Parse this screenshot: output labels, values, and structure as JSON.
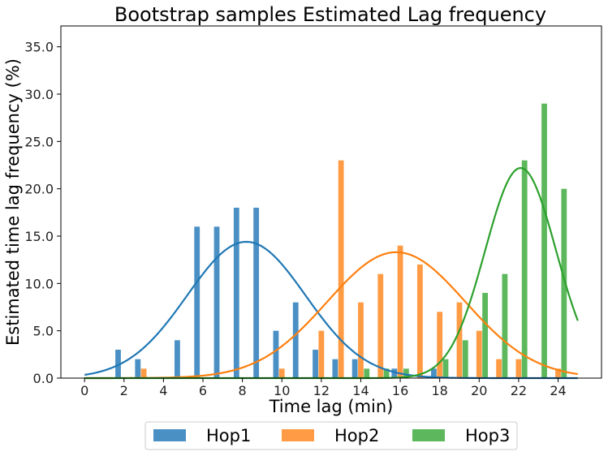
{
  "chart_data": {
    "type": "bar",
    "title": "Bootstrap samples Estimated Lag frequency",
    "xlabel": "Time lag (min)",
    "ylabel": "Estimated time lag frequency (%)",
    "xlim": [
      -1.2,
      26.2
    ],
    "ylim": [
      0,
      37.2
    ],
    "x_ticks": [
      0,
      2,
      4,
      6,
      8,
      10,
      12,
      14,
      16,
      18,
      20,
      22,
      24
    ],
    "y_ticks": [
      0.0,
      5.0,
      10.0,
      15.0,
      20.0,
      25.0,
      30.0,
      35.0
    ],
    "bar_offsets": [
      -0.3,
      0,
      0.3
    ],
    "bar_width": 0.28,
    "legend_position": "bottom-center",
    "grid": false,
    "series": [
      {
        "name": "Hop1",
        "color": "#4a90c4",
        "line_color": "#1f77b4",
        "bars": [
          {
            "x": 2,
            "y": 3
          },
          {
            "x": 3,
            "y": 2
          },
          {
            "x": 5,
            "y": 4
          },
          {
            "x": 6,
            "y": 16
          },
          {
            "x": 7,
            "y": 16
          },
          {
            "x": 8,
            "y": 18
          },
          {
            "x": 9,
            "y": 18
          },
          {
            "x": 10,
            "y": 5
          },
          {
            "x": 11,
            "y": 8
          },
          {
            "x": 12,
            "y": 3
          },
          {
            "x": 13,
            "y": 2
          },
          {
            "x": 14,
            "y": 2
          },
          {
            "x": 16,
            "y": 1
          },
          {
            "x": 18,
            "y": 1
          }
        ],
        "fit": {
          "mean": 8.2,
          "sd": 3.0,
          "peak": 14.4
        }
      },
      {
        "name": "Hop2",
        "color": "#ff9b44",
        "line_color": "#ff7f0e",
        "bars": [
          {
            "x": 3,
            "y": 1
          },
          {
            "x": 10,
            "y": 1
          },
          {
            "x": 12,
            "y": 5
          },
          {
            "x": 13,
            "y": 23
          },
          {
            "x": 14,
            "y": 8
          },
          {
            "x": 15,
            "y": 11
          },
          {
            "x": 16,
            "y": 14
          },
          {
            "x": 17,
            "y": 12
          },
          {
            "x": 18,
            "y": 7
          },
          {
            "x": 19,
            "y": 8
          },
          {
            "x": 20,
            "y": 5
          },
          {
            "x": 21,
            "y": 2
          },
          {
            "x": 22,
            "y": 2
          },
          {
            "x": 24,
            "y": 1
          }
        ],
        "fit": {
          "mean": 15.8,
          "sd": 3.5,
          "peak": 13.3
        }
      },
      {
        "name": "Hop3",
        "color": "#5db85d",
        "line_color": "#2ca02c",
        "bars": [
          {
            "x": 14,
            "y": 1
          },
          {
            "x": 15,
            "y": 1
          },
          {
            "x": 16,
            "y": 1
          },
          {
            "x": 18,
            "y": 2
          },
          {
            "x": 19,
            "y": 4
          },
          {
            "x": 20,
            "y": 9
          },
          {
            "x": 21,
            "y": 11
          },
          {
            "x": 22,
            "y": 23
          },
          {
            "x": 23,
            "y": 29
          },
          {
            "x": 24,
            "y": 20
          }
        ],
        "fit": {
          "mean": 22.1,
          "sd": 1.8,
          "peak": 22.2
        }
      }
    ]
  }
}
